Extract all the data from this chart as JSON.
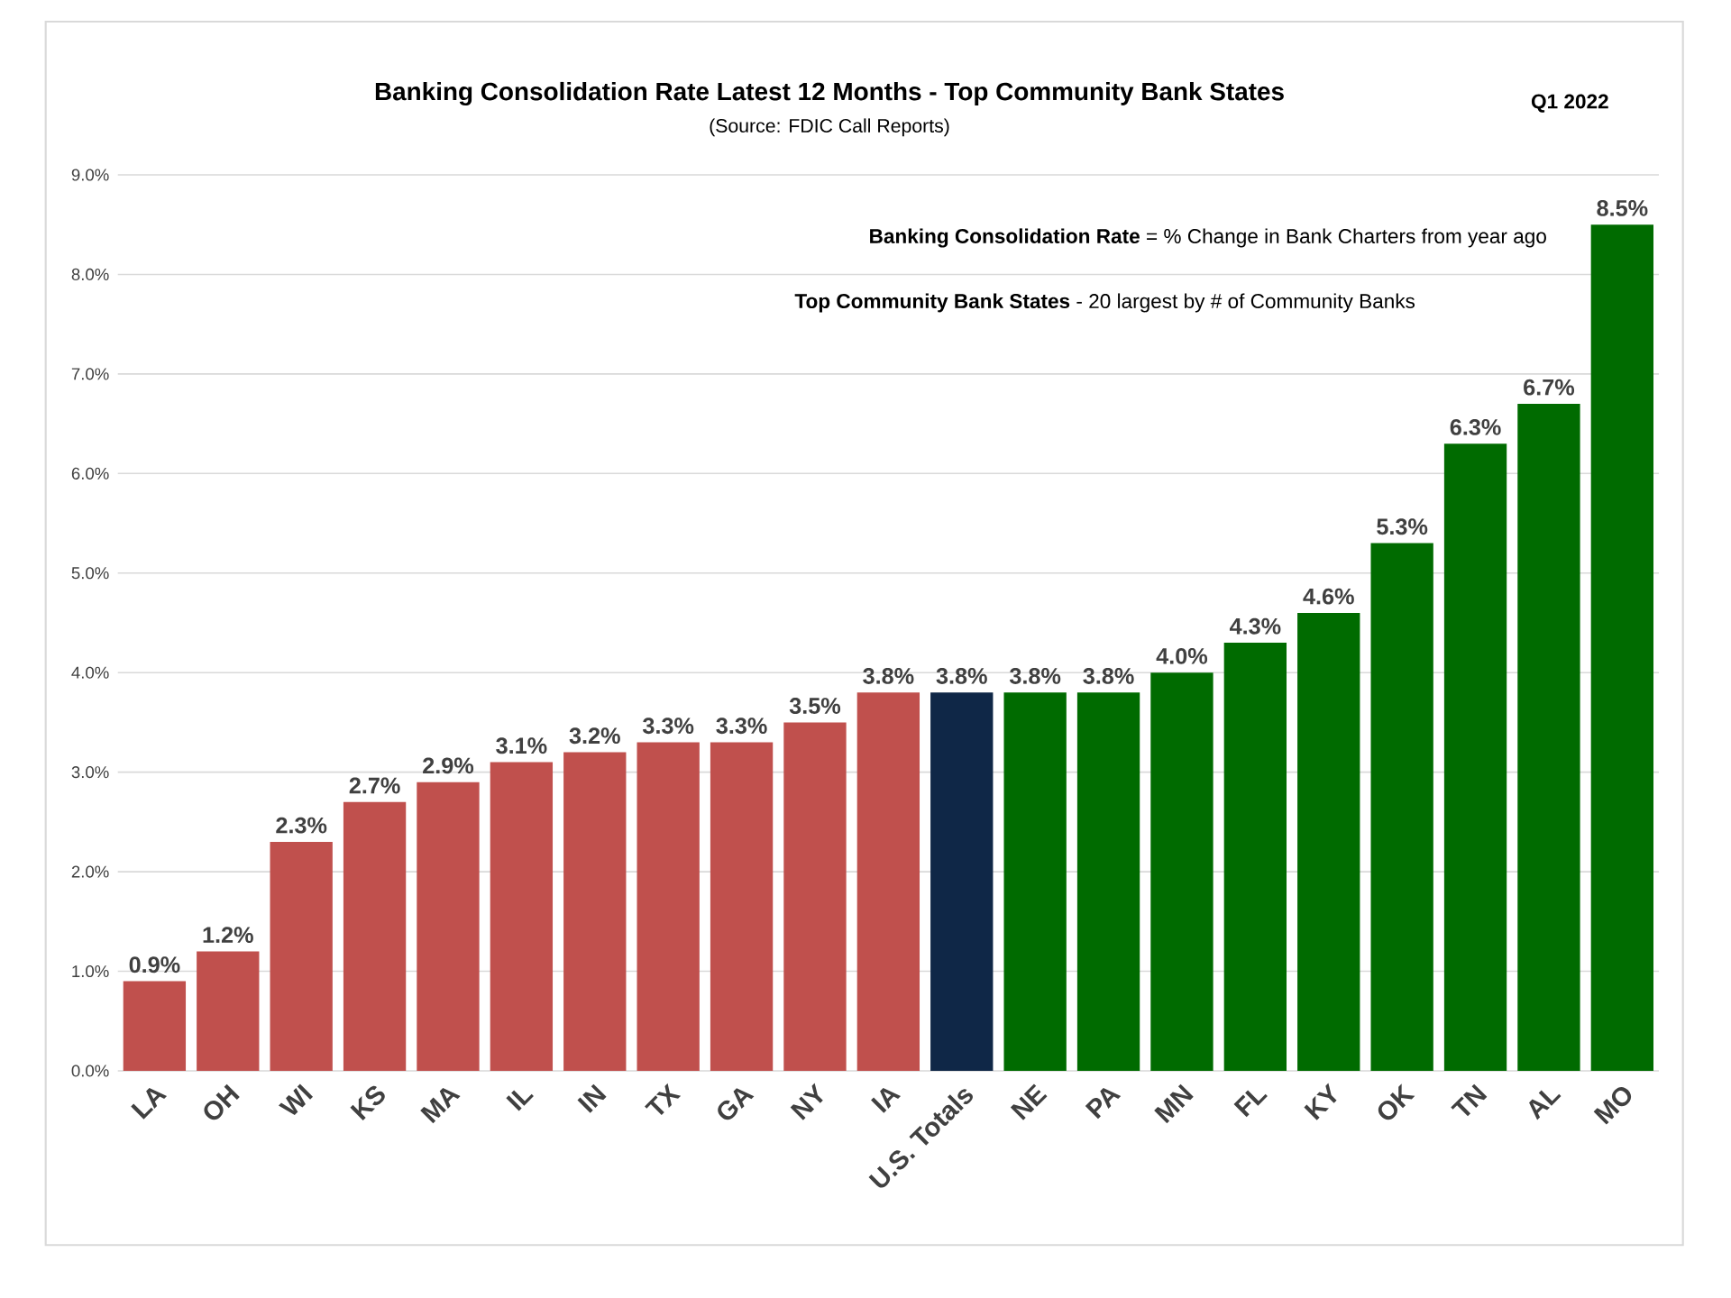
{
  "chart_data": {
    "type": "bar",
    "title": "Banking Consolidation Rate Latest 12 Months - Top Community Bank States",
    "subtitle": "(Source: FDIC Call Reports)",
    "annotations": [
      "Q1  2022",
      "**Banking Consolidation Rate** = % Change in Bank Charters from year ago",
      "**Top Community Bank States** - 20 largest by # of Community Banks"
    ],
    "categories": [
      "LA",
      "OH",
      "WI",
      "KS",
      "MA",
      "IL",
      "IN",
      "TX",
      "GA",
      "NY",
      "IA",
      "U.S. Totals",
      "NE",
      "PA",
      "MN",
      "FL",
      "KY",
      "OK",
      "TN",
      "AL",
      "MO"
    ],
    "values": [
      0.9,
      1.2,
      2.3,
      2.7,
      2.9,
      3.1,
      3.2,
      3.3,
      3.3,
      3.5,
      3.8,
      3.8,
      3.8,
      3.8,
      4.0,
      4.3,
      4.6,
      5.3,
      6.3,
      6.7,
      8.5
    ],
    "value_labels": [
      "0.9%",
      "1.2%",
      "2.3%",
      "2.7%",
      "2.9%",
      "3.1%",
      "3.2%",
      "3.3%",
      "3.3%",
      "3.5%",
      "3.8%",
      "3.8%",
      "3.8%",
      "3.8%",
      "4.0%",
      "4.3%",
      "4.6%",
      "5.3%",
      "6.3%",
      "6.7%",
      "8.5%"
    ],
    "colors": [
      "#c0504d",
      "#c0504d",
      "#c0504d",
      "#c0504d",
      "#c0504d",
      "#c0504d",
      "#c0504d",
      "#c0504d",
      "#c0504d",
      "#c0504d",
      "#c0504d",
      "#0f2747",
      "#006b00",
      "#006b00",
      "#006b00",
      "#006b00",
      "#006b00",
      "#006b00",
      "#006b00",
      "#006b00",
      "#006b00"
    ],
    "ylim": [
      0,
      9
    ],
    "yticks": [
      {
        "value": 0,
        "label": "0.0%"
      },
      {
        "value": 1,
        "label": "1.0%"
      },
      {
        "value": 2,
        "label": "2.0%"
      },
      {
        "value": 3,
        "label": "3.0%"
      },
      {
        "value": 4,
        "label": "4.0%"
      },
      {
        "value": 5,
        "label": "5.0%"
      },
      {
        "value": 6,
        "label": "6.0%"
      },
      {
        "value": 7,
        "label": "7.0%"
      },
      {
        "value": 8,
        "label": "8.0%"
      },
      {
        "value": 9,
        "label": "9.0%"
      }
    ],
    "grid": "y"
  }
}
